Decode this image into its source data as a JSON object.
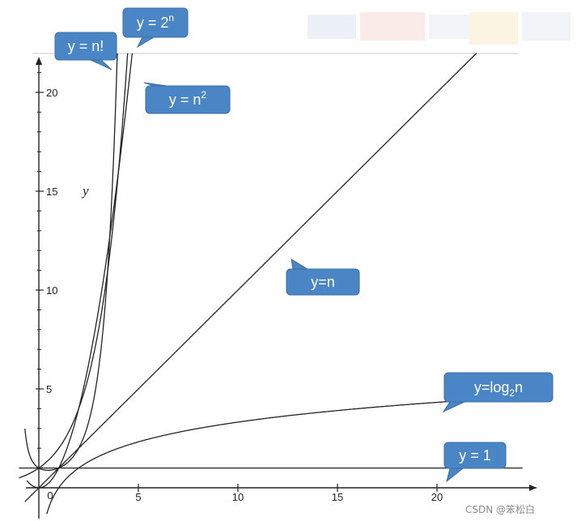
{
  "chart_data": {
    "type": "line",
    "title": "",
    "xlabel": "",
    "ylabel": "y",
    "xlim": [
      -1,
      24.5
    ],
    "ylim": [
      -1.8,
      22.5
    ],
    "x_ticks": [
      5,
      10,
      15,
      20
    ],
    "y_ticks": [
      5,
      10,
      15,
      20
    ],
    "origin_label": "0",
    "grid": false,
    "legend": "callouts",
    "series": [
      {
        "key": "factorial",
        "label": {
          "base": "y = n!",
          "sup": "",
          "sub": "",
          "tail": ""
        },
        "color": "#222222"
      },
      {
        "key": "exp2",
        "label": {
          "base": "y = 2",
          "sup": "n",
          "sub": "",
          "tail": ""
        },
        "color": "#222222"
      },
      {
        "key": "square",
        "label": {
          "base": "y = n",
          "sup": "2",
          "sub": "",
          "tail": ""
        },
        "color": "#222222"
      },
      {
        "key": "linear",
        "label": {
          "base": "y=n",
          "sup": "",
          "sub": "",
          "tail": ""
        },
        "color": "#222222"
      },
      {
        "key": "log2",
        "label": {
          "base": "y=log",
          "sup": "",
          "sub": "2",
          "tail": "n"
        },
        "color": "#222222"
      },
      {
        "key": "constant",
        "label": {
          "base": "y = 1",
          "sup": "",
          "sub": "",
          "tail": ""
        },
        "color": "#222222"
      }
    ]
  },
  "colors": {
    "callout_fill": "#4a86c5",
    "callout_stroke": "#3a6fa8",
    "axis": "#222222"
  },
  "watermark": "CSDN @笨松白"
}
